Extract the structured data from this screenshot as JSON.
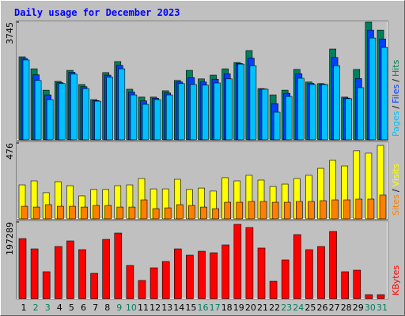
{
  "title": "Daily usage for December 2023",
  "chart_data": [
    {
      "type": "bar",
      "ylim": [
        0,
        3745
      ],
      "yticks": [
        3745
      ],
      "legend_separator": "/",
      "series": [
        {
          "name": "Hits",
          "color": "#00805C",
          "values": [
            2640,
            2260,
            1580,
            1860,
            2210,
            1760,
            1280,
            2140,
            2490,
            1610,
            1360,
            1360,
            1560,
            1890,
            2210,
            1940,
            2060,
            2260,
            2460,
            2840,
            1630,
            1430,
            1580,
            2240,
            1840,
            1790,
            2890,
            1360,
            2240,
            3745,
            3490
          ]
        },
        {
          "name": "Files",
          "color": "#0040FF",
          "values": [
            2590,
            2070,
            1430,
            1820,
            2150,
            1690,
            1250,
            2060,
            2370,
            1520,
            1240,
            1320,
            1490,
            1840,
            1980,
            1840,
            1930,
            2100,
            2430,
            2600,
            1620,
            1150,
            1480,
            2100,
            1800,
            1770,
            2620,
            1330,
            1950,
            3490,
            3210
          ]
        },
        {
          "name": "Pages",
          "color": "#00C0FF",
          "values": [
            2540,
            1890,
            1280,
            1790,
            2090,
            1630,
            1230,
            1990,
            2260,
            1430,
            1130,
            1280,
            1430,
            1790,
            1760,
            1740,
            1810,
            1940,
            2410,
            2360,
            1610,
            880,
            1380,
            1960,
            1760,
            1760,
            2360,
            1310,
            1660,
            3240,
            2940
          ]
        }
      ]
    },
    {
      "type": "bar",
      "ylim": [
        0,
        476
      ],
      "yticks": [
        476
      ],
      "legend_separator": "/",
      "series": [
        {
          "name": "Visits",
          "color": "#FFFF00",
          "values": [
            213,
            238,
            164,
            233,
            208,
            144,
            184,
            184,
            208,
            213,
            253,
            188,
            188,
            248,
            184,
            193,
            174,
            258,
            238,
            273,
            243,
            203,
            218,
            253,
            273,
            317,
            367,
            332,
            427,
            412,
            461
          ]
        },
        {
          "name": "Sites",
          "color": "#FF8000",
          "values": [
            79,
            74,
            89,
            79,
            79,
            74,
            84,
            84,
            74,
            74,
            119,
            64,
            69,
            89,
            84,
            74,
            64,
            104,
            104,
            109,
            109,
            104,
            104,
            109,
            109,
            114,
            119,
            119,
            124,
            124,
            149
          ]
        }
      ]
    },
    {
      "type": "bar",
      "ylim": [
        0,
        197289
      ],
      "yticks": [
        197289
      ],
      "categories": [
        "1",
        "2",
        "3",
        "4",
        "5",
        "6",
        "7",
        "8",
        "9",
        "10",
        "11",
        "12",
        "13",
        "14",
        "15",
        "16",
        "17",
        "18",
        "19",
        "20",
        "21",
        "22",
        "23",
        "24",
        "25",
        "26",
        "27",
        "28",
        "29",
        "30",
        "31"
      ],
      "label_colors": [
        "#000000",
        "#00805C",
        "#00805C",
        "#000000",
        "#000000",
        "#000000",
        "#000000",
        "#000000",
        "#00805C",
        "#00805C",
        "#000000",
        "#000000",
        "#000000",
        "#000000",
        "#000000",
        "#00805C",
        "#00805C",
        "#000000",
        "#000000",
        "#000000",
        "#000000",
        "#000000",
        "#00805C",
        "#00805C",
        "#000000",
        "#000000",
        "#000000",
        "#000000",
        "#000000",
        "#00805C",
        "#00805C"
      ],
      "series": [
        {
          "name": "KBytes",
          "color": "#FF0000",
          "values": [
            154600,
            128100,
            69200,
            134200,
            148500,
            126100,
            65100,
            152500,
            168800,
            85400,
            46800,
            79300,
            95600,
            128100,
            111900,
            122000,
            118000,
            138300,
            191200,
            183100,
            130200,
            44700,
            99700,
            164800,
            126100,
            134200,
            172900,
            69200,
            73200,
            10200,
            10200
          ]
        }
      ]
    }
  ]
}
